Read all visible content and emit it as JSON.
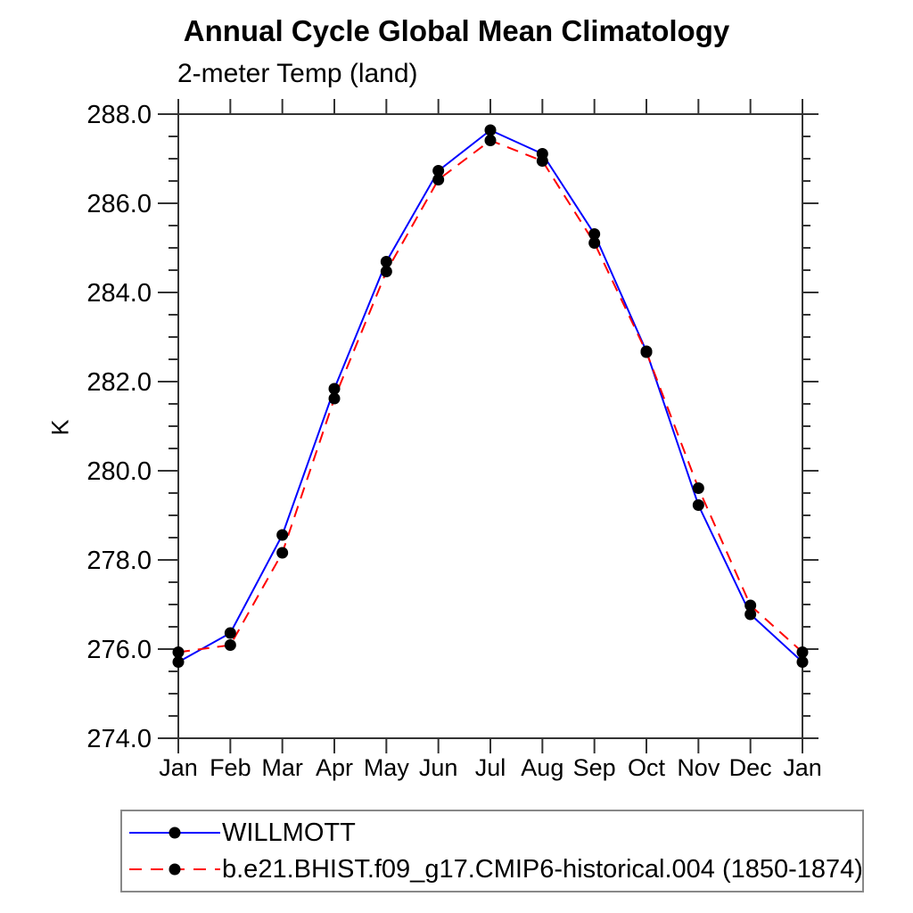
{
  "chart_data": {
    "type": "line",
    "title": "Annual Cycle Global Mean Climatology",
    "subtitle": "2-meter Temp (land)",
    "ylabel": "K",
    "xlabel": "",
    "x_categories": [
      "Jan",
      "Feb",
      "Mar",
      "Apr",
      "May",
      "Jun",
      "Jul",
      "Aug",
      "Sep",
      "Oct",
      "Nov",
      "Dec",
      "Jan"
    ],
    "ylim": [
      274.0,
      288.0
    ],
    "ytick_major_interval": 2.0,
    "ytick_minor_interval": 0.5,
    "ytick_labels": [
      "274.0",
      "276.0",
      "278.0",
      "280.0",
      "282.0",
      "284.0",
      "286.0",
      "288.0"
    ],
    "grid": "off",
    "axis_color": "#333333",
    "marker_color": "#000000",
    "legend_position": "bottom-left-box",
    "series": [
      {
        "name": "WILLMOTT",
        "color": "#0000ff",
        "style": "solid",
        "marker": "filled-circle",
        "values": [
          275.71,
          276.36,
          278.56,
          281.84,
          284.69,
          286.73,
          287.64,
          287.11,
          285.31,
          282.68,
          279.23,
          276.78,
          275.71
        ]
      },
      {
        "name": "b.e21.BHIST.f09_g17.CMIP6-historical.004 (1850-1874)",
        "color": "#ff0000",
        "style": "dashed",
        "marker": "filled-circle",
        "values": [
          275.93,
          276.09,
          278.16,
          281.62,
          284.47,
          286.53,
          287.41,
          286.95,
          285.11,
          282.66,
          279.61,
          276.98,
          275.93
        ]
      }
    ]
  }
}
